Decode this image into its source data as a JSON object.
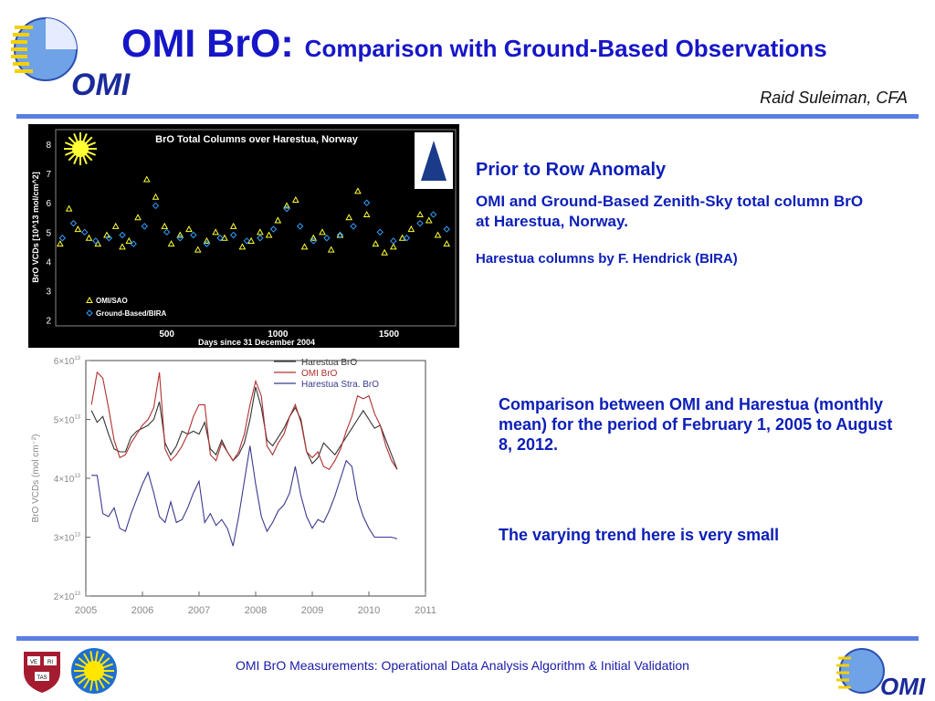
{
  "header": {
    "title": "OMI BrO:",
    "subtitle": "Comparison with Ground-Based Observations",
    "author": "Raid Suleiman, CFA",
    "logo_text": "OMI"
  },
  "right_panel": {
    "heading": "Prior to Row Anomaly",
    "paragraph": "OMI and Ground-Based  Zenith-Sky total column BrO at Harestua, Norway.",
    "credit": "Harestua columns by F. Hendrick (BIRA)",
    "comparison": "Comparison between OMI and Harestua (monthly mean)  for the period of February 1, 2005 to August 8, 2012.",
    "trend": "The varying trend here is very small"
  },
  "footer": {
    "text": "OMI BrO Measurements: Operational Data Analysis Algorithm & Initial Validation",
    "logo_text": "OMI",
    "shield_text": [
      "VE",
      "RI",
      "TAS"
    ]
  },
  "colors": {
    "title_blue": "#1616c8",
    "text_blue": "#0d1fb8",
    "rule_blue": "#5a7fe0",
    "omi_yellow": "#ffff33",
    "ground_cyan": "#33a0ff",
    "harestua": "#333333",
    "omi_red": "#b03030",
    "strat_blue": "#3a3a90"
  },
  "chart_data": [
    {
      "type": "scatter",
      "title": "BrO Total Columns over Harestua, Norway",
      "xlabel": "Days since 31 December 2004",
      "ylabel": "BrO VCDs [10^13 mol/cm^2]",
      "xlim": [
        0,
        1800
      ],
      "ylim": [
        1.8,
        8.5
      ],
      "xticks": [
        "500",
        "1000",
        "1500"
      ],
      "yticks": [
        "2",
        "3",
        "4",
        "5",
        "6",
        "7",
        "8"
      ],
      "legend": [
        "OMI/SAO",
        "Ground-Based/BIRA"
      ],
      "legend_position": "bottom-left",
      "series": [
        {
          "name": "OMI/SAO",
          "marker": "triangle",
          "x": [
            20,
            60,
            100,
            150,
            190,
            230,
            270,
            300,
            330,
            370,
            410,
            450,
            490,
            520,
            560,
            600,
            640,
            680,
            720,
            760,
            800,
            840,
            880,
            920,
            960,
            1000,
            1040,
            1080,
            1120,
            1160,
            1200,
            1240,
            1280,
            1320,
            1360,
            1400,
            1440,
            1480,
            1520,
            1560,
            1600,
            1640,
            1680,
            1720,
            1760
          ],
          "y": [
            4.6,
            5.8,
            5.1,
            4.8,
            4.6,
            4.9,
            5.2,
            4.5,
            4.7,
            5.5,
            6.8,
            6.2,
            5.2,
            4.6,
            4.9,
            5.1,
            4.4,
            4.7,
            5.0,
            4.8,
            5.2,
            4.5,
            4.7,
            5.0,
            4.9,
            5.4,
            5.9,
            6.1,
            4.5,
            4.8,
            5.0,
            4.4,
            4.9,
            5.5,
            6.4,
            5.6,
            4.6,
            4.3,
            4.5,
            4.8,
            5.1,
            5.6,
            5.4,
            4.9,
            4.6
          ]
        },
        {
          "name": "Ground-Based/BIRA",
          "marker": "diamond",
          "x": [
            30,
            80,
            130,
            180,
            240,
            300,
            350,
            400,
            450,
            500,
            560,
            620,
            680,
            740,
            800,
            860,
            920,
            980,
            1040,
            1100,
            1160,
            1220,
            1280,
            1340,
            1400,
            1460,
            1520,
            1580,
            1640,
            1700,
            1760
          ],
          "y": [
            4.8,
            5.3,
            5.0,
            4.7,
            4.8,
            4.9,
            4.6,
            5.2,
            5.9,
            5.0,
            4.8,
            4.9,
            4.6,
            4.8,
            4.9,
            4.7,
            4.8,
            5.1,
            5.8,
            5.2,
            4.7,
            4.8,
            4.9,
            5.2,
            6.0,
            5.0,
            4.7,
            4.8,
            5.3,
            5.6,
            5.1
          ]
        }
      ]
    },
    {
      "type": "line",
      "title": "",
      "xlabel": "",
      "ylabel": "BrO VCDs (mol cm⁻²)",
      "xlim": [
        2005,
        2011
      ],
      "ylim": [
        2,
        6
      ],
      "y_unit_exponent": 13,
      "xticks": [
        "2005",
        "2006",
        "2007",
        "2008",
        "2009",
        "2010",
        "2011"
      ],
      "yticks": [
        "2×10",
        "3×10",
        "4×10",
        "5×10",
        "6×10"
      ],
      "ytick_exp": "13",
      "legend": [
        "Harestua BrO",
        "OMI BrO",
        "Harestua Stra. BrO"
      ],
      "legend_position": "top-right",
      "series": [
        {
          "name": "Harestua BrO",
          "x": [
            2005.1,
            2005.2,
            2005.3,
            2005.4,
            2005.5,
            2005.6,
            2005.7,
            2005.8,
            2005.9,
            2006.0,
            2006.1,
            2006.2,
            2006.3,
            2006.4,
            2006.5,
            2006.6,
            2006.7,
            2006.8,
            2006.9,
            2007.0,
            2007.1,
            2007.2,
            2007.3,
            2007.4,
            2007.5,
            2007.6,
            2007.7,
            2007.8,
            2007.9,
            2008.0,
            2008.1,
            2008.2,
            2008.3,
            2008.4,
            2008.5,
            2008.6,
            2008.7,
            2008.8,
            2008.9,
            2009.0,
            2009.1,
            2009.2,
            2009.3,
            2009.4,
            2009.5,
            2009.6,
            2009.7,
            2009.8,
            2009.9,
            2010.0,
            2010.1,
            2010.2,
            2010.3,
            2010.4,
            2010.5
          ],
          "y": [
            5.15,
            4.95,
            5.05,
            4.75,
            4.5,
            4.45,
            4.45,
            4.7,
            4.8,
            4.85,
            4.9,
            5.0,
            5.3,
            4.6,
            4.4,
            4.55,
            4.8,
            4.75,
            4.8,
            4.75,
            4.95,
            4.5,
            4.4,
            4.65,
            4.45,
            4.3,
            4.4,
            4.6,
            5.0,
            5.55,
            5.2,
            4.65,
            4.55,
            4.7,
            4.85,
            5.05,
            5.2,
            5.0,
            4.45,
            4.25,
            4.35,
            4.6,
            4.5,
            4.4,
            4.55,
            4.7,
            4.85,
            5.0,
            5.15,
            5.0,
            4.85,
            4.9,
            4.65,
            4.4,
            4.15
          ]
        },
        {
          "name": "OMI BrO",
          "x": [
            2005.1,
            2005.2,
            2005.3,
            2005.4,
            2005.5,
            2005.6,
            2005.7,
            2005.8,
            2005.9,
            2006.0,
            2006.1,
            2006.2,
            2006.3,
            2006.4,
            2006.5,
            2006.6,
            2006.7,
            2006.8,
            2006.9,
            2007.0,
            2007.1,
            2007.2,
            2007.3,
            2007.4,
            2007.5,
            2007.6,
            2007.7,
            2007.8,
            2007.9,
            2008.0,
            2008.1,
            2008.2,
            2008.3,
            2008.4,
            2008.5,
            2008.6,
            2008.7,
            2008.8,
            2008.9,
            2009.0,
            2009.1,
            2009.2,
            2009.3,
            2009.4,
            2009.5,
            2009.6,
            2009.7,
            2009.8,
            2009.9,
            2010.0,
            2010.1,
            2010.2,
            2010.3,
            2010.4,
            2010.5
          ],
          "y": [
            5.25,
            5.8,
            5.7,
            5.2,
            4.65,
            4.35,
            4.4,
            4.6,
            4.75,
            4.9,
            5.0,
            5.2,
            5.8,
            4.5,
            4.3,
            4.4,
            4.55,
            4.75,
            5.05,
            5.25,
            5.25,
            4.4,
            4.3,
            4.6,
            4.45,
            4.3,
            4.45,
            4.75,
            5.25,
            5.65,
            5.4,
            4.55,
            4.4,
            4.6,
            4.75,
            5.05,
            5.25,
            4.95,
            4.45,
            4.35,
            4.45,
            4.2,
            4.15,
            4.3,
            4.5,
            4.8,
            5.05,
            5.4,
            5.35,
            5.4,
            5.1,
            4.9,
            4.55,
            4.3,
            4.15
          ]
        },
        {
          "name": "Harestua Stra. BrO",
          "x": [
            2005.1,
            2005.2,
            2005.3,
            2005.4,
            2005.5,
            2005.6,
            2005.7,
            2005.8,
            2005.9,
            2006.0,
            2006.1,
            2006.2,
            2006.3,
            2006.4,
            2006.5,
            2006.6,
            2006.7,
            2006.8,
            2006.9,
            2007.0,
            2007.1,
            2007.2,
            2007.3,
            2007.4,
            2007.5,
            2007.6,
            2007.7,
            2007.8,
            2007.9,
            2008.0,
            2008.1,
            2008.2,
            2008.3,
            2008.4,
            2008.5,
            2008.6,
            2008.7,
            2008.8,
            2008.9,
            2009.0,
            2009.1,
            2009.2,
            2009.3,
            2009.4,
            2009.5,
            2009.6,
            2009.7,
            2009.8,
            2009.9,
            2010.0,
            2010.1,
            2010.2,
            2010.3,
            2010.4,
            2010.5
          ],
          "y": [
            4.05,
            4.05,
            3.4,
            3.35,
            3.5,
            3.15,
            3.1,
            3.4,
            3.65,
            3.9,
            4.1,
            3.75,
            3.35,
            3.25,
            3.6,
            3.25,
            3.3,
            3.5,
            3.75,
            3.95,
            3.25,
            3.4,
            3.2,
            3.3,
            3.15,
            2.85,
            3.35,
            3.95,
            4.55,
            3.9,
            3.35,
            3.1,
            3.25,
            3.45,
            3.55,
            3.75,
            4.2,
            3.7,
            3.35,
            3.15,
            3.3,
            3.25,
            3.45,
            3.7,
            4.0,
            4.3,
            4.2,
            3.65,
            3.35,
            3.15,
            3.0,
            3.0,
            3.0,
            3.0,
            2.97
          ]
        }
      ]
    }
  ]
}
